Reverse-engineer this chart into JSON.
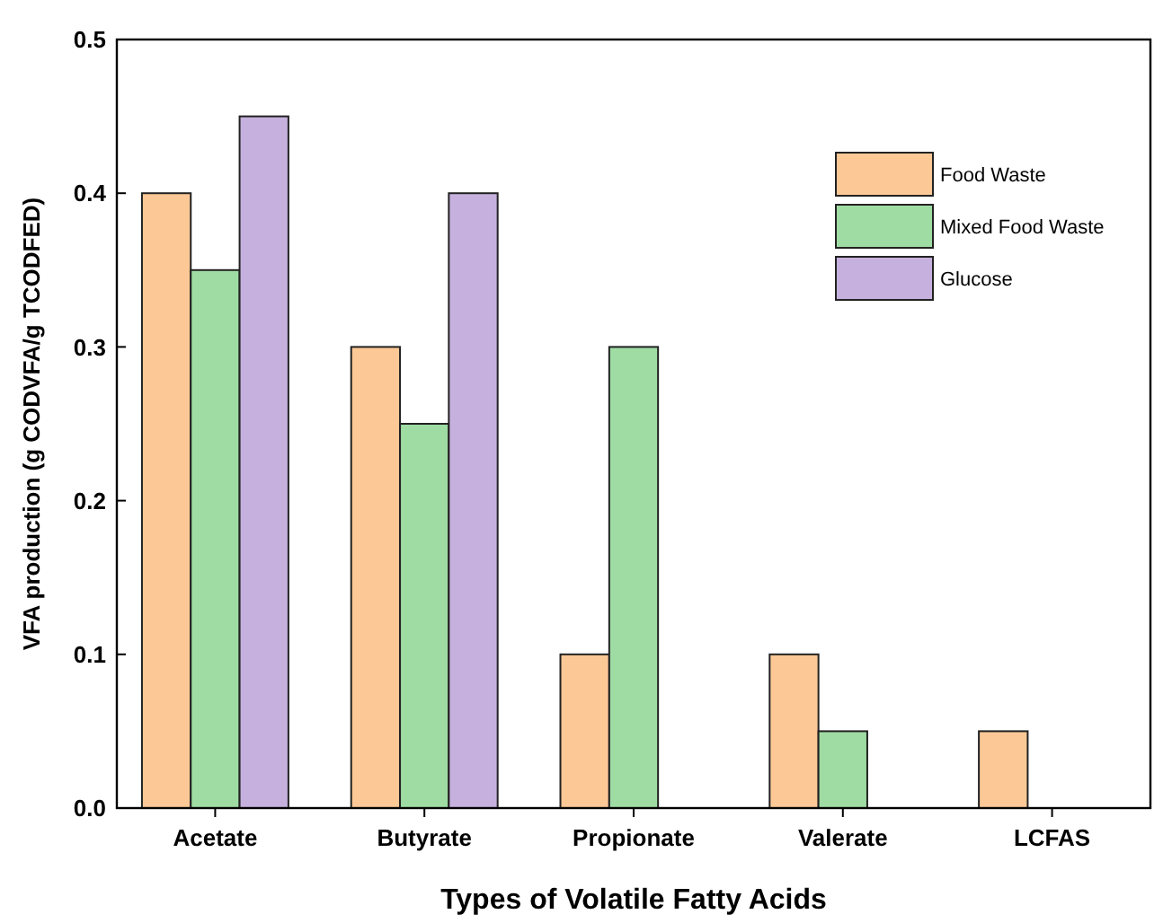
{
  "chart_data": {
    "type": "bar",
    "xlabel": "Types of Volatile Fatty Acids",
    "ylabel": "VFA production (g CODVFA/g TCODFED)",
    "categories": [
      "Acetate",
      "Butyrate",
      "Propionate",
      "Valerate",
      "LCFAS"
    ],
    "series": [
      {
        "name": "Food Waste",
        "color": "#fcc896",
        "values": [
          0.4,
          0.3,
          0.1,
          0.1,
          0.05
        ]
      },
      {
        "name": "Mixed Food Waste",
        "color": "#9fdca3",
        "values": [
          0.35,
          0.25,
          0.3,
          0.05,
          null
        ]
      },
      {
        "name": "Glucose",
        "color": "#c6b1de",
        "values": [
          0.45,
          0.4,
          null,
          null,
          null
        ]
      }
    ],
    "ylim": [
      0,
      0.5
    ],
    "yticks": [
      {
        "value": 0,
        "label": "0.0"
      },
      0.1,
      0.2,
      0.3,
      0.4,
      0.5
    ],
    "grid": false,
    "legend": "top right"
  }
}
